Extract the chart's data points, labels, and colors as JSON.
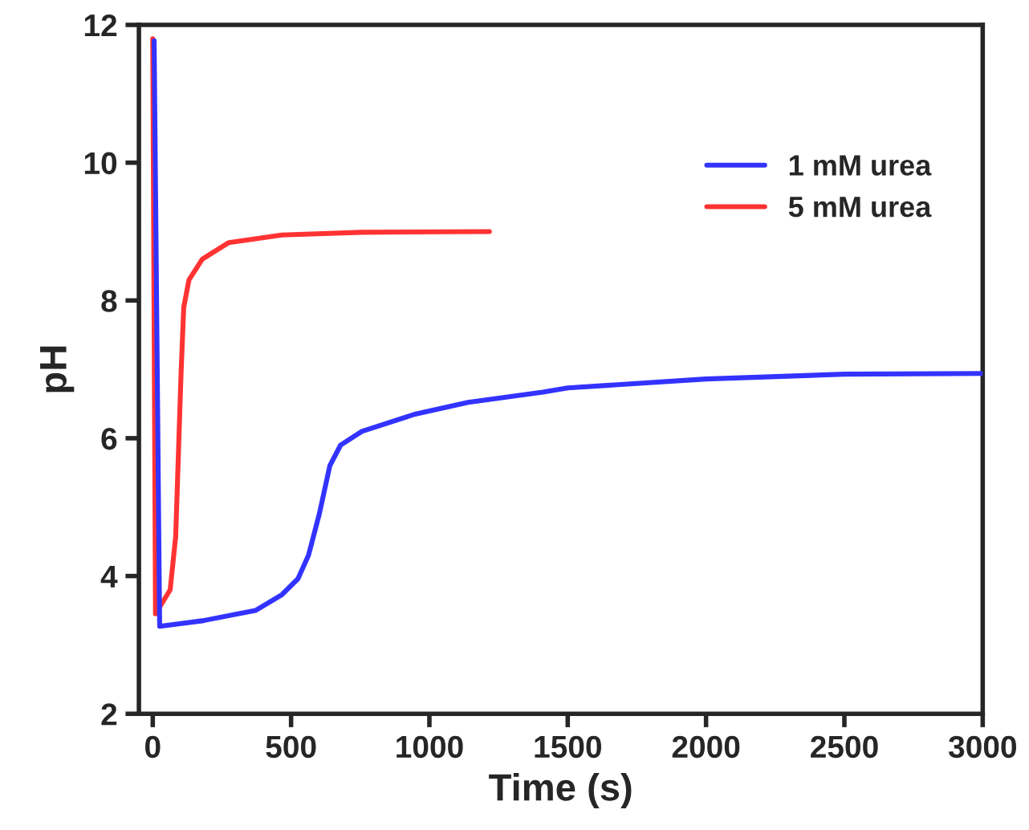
{
  "chart_data": {
    "type": "line",
    "xlabel": "Time (s)",
    "ylabel": "pH",
    "xlim": [
      -50,
      3000
    ],
    "xticks": [
      0,
      500,
      1000,
      1500,
      2000,
      2500,
      3000
    ],
    "ylim": [
      2,
      12
    ],
    "yticks": [
      2,
      4,
      6,
      8,
      10,
      12
    ],
    "grid": false,
    "legend": "top right",
    "line_style": "solid",
    "marker": "none",
    "series": [
      {
        "name": "1 mM urea",
        "color": "#3333ff",
        "x": [
          5,
          25,
          179,
          371,
          467,
          525,
          563,
          602,
          640,
          679,
          756,
          948,
          1140,
          1410,
          1500,
          2000,
          2500,
          3000
        ],
        "values": [
          11.77,
          3.27,
          3.35,
          3.5,
          3.73,
          3.96,
          4.3,
          4.9,
          5.6,
          5.9,
          6.1,
          6.35,
          6.52,
          6.67,
          6.73,
          6.86,
          6.93,
          6.94
        ]
      },
      {
        "name": "5 mM urea",
        "color": "#ff3333",
        "x": [
          0,
          10,
          63,
          83,
          102,
          112,
          131,
          179,
          275,
          467,
          756,
          1217
        ],
        "values": [
          11.8,
          3.45,
          3.8,
          4.58,
          6.9,
          7.9,
          8.3,
          8.6,
          8.84,
          8.95,
          8.99,
          9.0
        ]
      }
    ]
  }
}
